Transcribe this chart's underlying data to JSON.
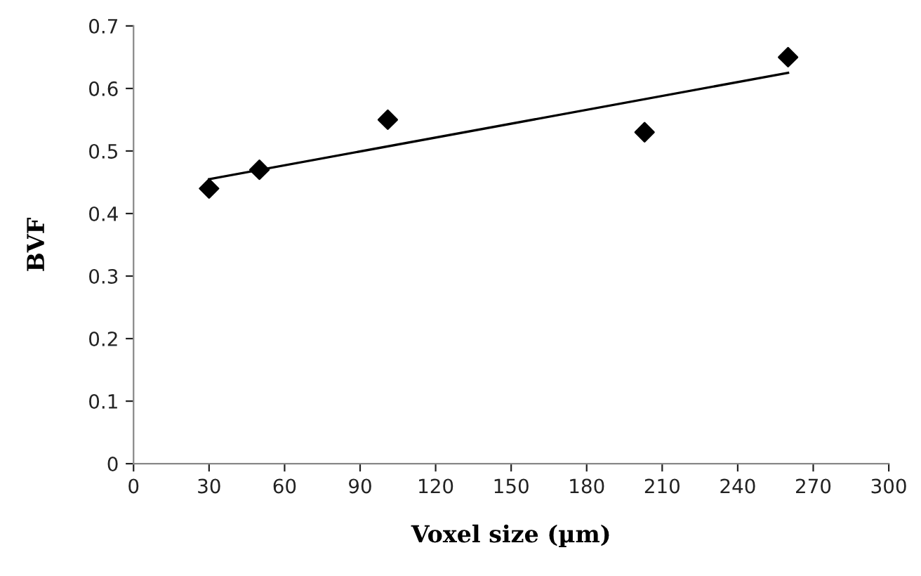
{
  "chart_data": {
    "type": "scatter",
    "xlabel": "Voxel size (µm)",
    "ylabel": "BVF",
    "xlim": [
      0,
      300
    ],
    "xticks": [
      0,
      30,
      60,
      90,
      120,
      150,
      180,
      210,
      240,
      270,
      300
    ],
    "ylim": [
      0,
      0.7
    ],
    "yticks": [
      0,
      0.1,
      0.2,
      0.3,
      0.4,
      0.5,
      0.6,
      0.7
    ],
    "grid": false,
    "marker": "diamond",
    "series": [
      {
        "color": "#000000",
        "x": [
          30,
          50,
          101,
          203,
          260
        ],
        "values": [
          0.44,
          0.47,
          0.55,
          0.53,
          0.65
        ]
      },
      {
        "type": "line",
        "color": "#000000",
        "marker": "none",
        "x": [
          30,
          260
        ],
        "values": [
          0.455,
          0.625
        ]
      }
    ]
  }
}
